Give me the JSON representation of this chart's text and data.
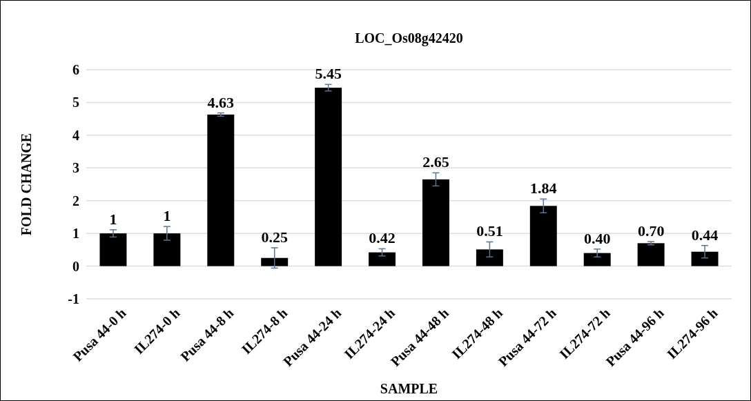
{
  "chart_data": {
    "type": "bar",
    "title": "LOC_Os08g42420",
    "xlabel": "SAMPLE",
    "ylabel": "FOLD CHANGE",
    "categories": [
      "Pusa 44-0 h",
      "IL274-0 h",
      "Pusa 44-8 h",
      "IL274-8 h",
      "Pusa 44-24 h",
      "IL274-24 h",
      "Pusa 44-48 h",
      "IL274-48 h",
      "Pusa 44-72 h",
      "IL274-72 h",
      "Pusa 44-96 h",
      "IL274-96 h"
    ],
    "values": [
      1,
      1,
      4.63,
      0.25,
      5.45,
      0.42,
      2.65,
      0.51,
      1.84,
      0.4,
      0.7,
      0.44
    ],
    "value_labels": [
      "1",
      "1",
      "4.63",
      "0.25",
      "5.45",
      "0.42",
      "2.65",
      "0.51",
      "1.84",
      "0.40",
      "0.70",
      "0.44"
    ],
    "errors": [
      0.11,
      0.21,
      0.05,
      0.31,
      0.1,
      0.11,
      0.2,
      0.23,
      0.21,
      0.12,
      0.05,
      0.19
    ],
    "color": "#000000",
    "ylim": [
      -1,
      6
    ],
    "yticks": [
      -1,
      0,
      1,
      2,
      3,
      4,
      5,
      6
    ],
    "grid": "y"
  }
}
